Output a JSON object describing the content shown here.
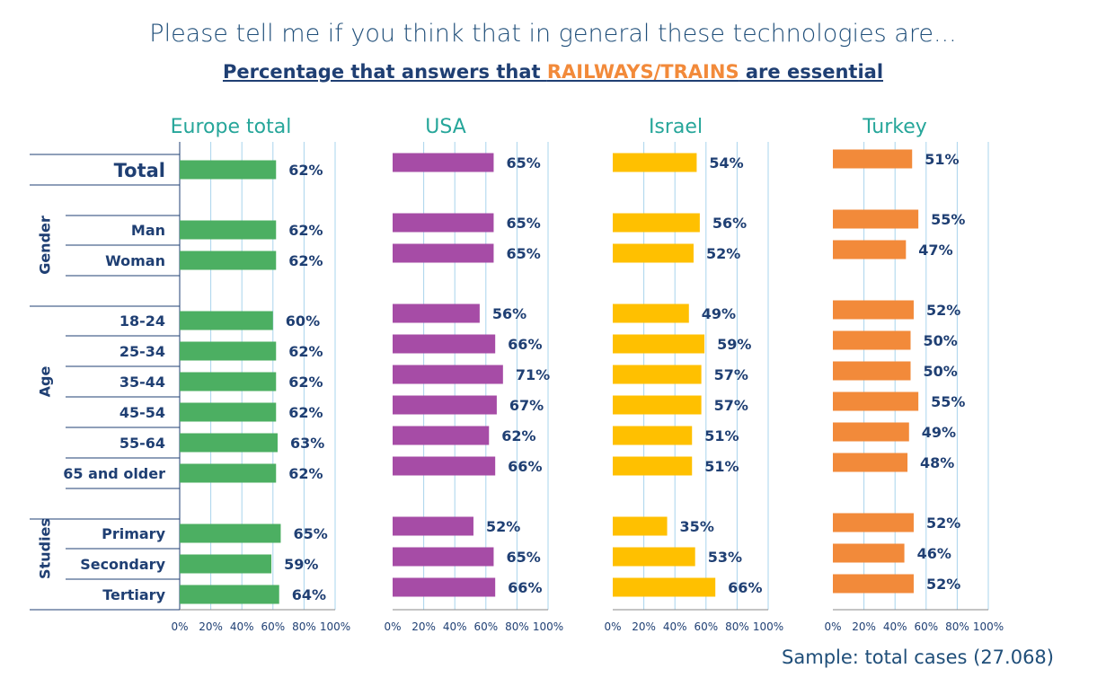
{
  "title": "Please tell me if you think that in general these technologies are...",
  "subtitle": {
    "prefix": "Percentage that answers that ",
    "highlight": "RAILWAYS/TRAINS",
    "suffix": " are essential"
  },
  "sample_note": "Sample: total cases (27.068)",
  "colors": {
    "europe": "#4caf62",
    "usa": "#a64ca6",
    "israel": "#ffc000",
    "turkey": "#f28a3a",
    "label_text": "#1f3f73",
    "panel_title": "#26a69a",
    "gridline": "#a9d4ec"
  },
  "chart_data": {
    "type": "bar",
    "orientation": "horizontal",
    "xlim": [
      0,
      100
    ],
    "x_ticks": [
      "0%",
      "20%",
      "40%",
      "60%",
      "80%",
      "100%"
    ],
    "groups": [
      {
        "label": "",
        "categories": [
          "Total"
        ]
      },
      {
        "label": "Gender",
        "categories": [
          "Man",
          "Woman"
        ]
      },
      {
        "label": "Age",
        "categories": [
          "18-24",
          "25-34",
          "35-44",
          "45-54",
          "55-64",
          "65 and older"
        ]
      },
      {
        "label": "Studies",
        "categories": [
          "Primary",
          "Secondary",
          "Tertiary"
        ]
      }
    ],
    "panels": [
      {
        "name": "Europe total",
        "color_key": "europe",
        "values": [
          62,
          62,
          62,
          60,
          62,
          62,
          62,
          63,
          62,
          65,
          59,
          64
        ]
      },
      {
        "name": "USA",
        "color_key": "usa",
        "values": [
          65,
          65,
          65,
          56,
          66,
          71,
          67,
          62,
          66,
          52,
          65,
          66
        ]
      },
      {
        "name": "Israel",
        "color_key": "israel",
        "values": [
          54,
          56,
          52,
          49,
          59,
          57,
          57,
          51,
          51,
          35,
          53,
          66
        ]
      },
      {
        "name": "Turkey",
        "color_key": "turkey",
        "values": [
          51,
          55,
          47,
          52,
          50,
          50,
          55,
          49,
          48,
          52,
          46,
          52
        ]
      }
    ]
  }
}
